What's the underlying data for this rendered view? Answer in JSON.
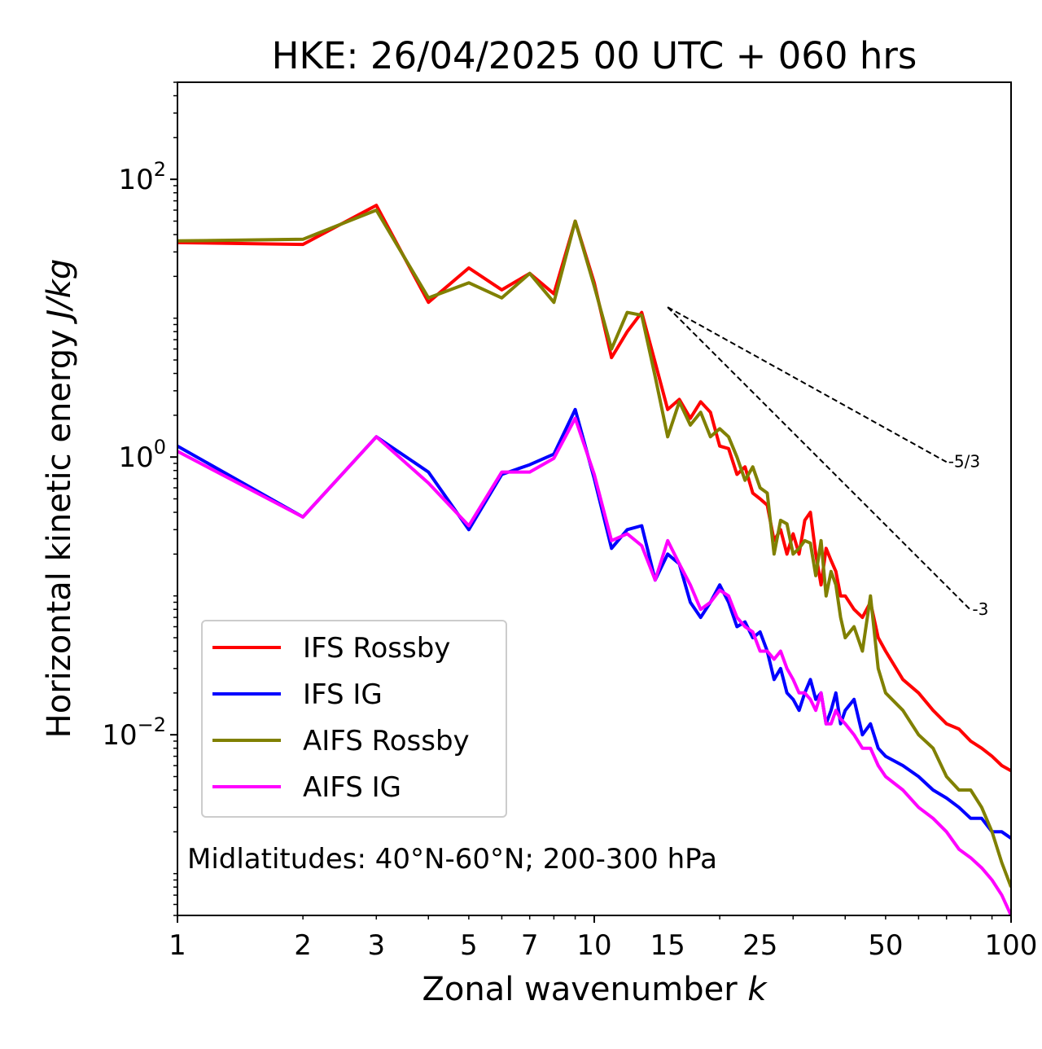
{
  "chart_data": {
    "type": "line",
    "title": "HKE: 26/04/2025 00 UTC + 060 hrs",
    "xlabel": "Zonal wavenumber",
    "xlabel_var": "k",
    "ylabel": "Horizontal kinetic energy",
    "ylabel_unit": "J/kg",
    "xscale": "log",
    "yscale": "log",
    "xlim": [
      1,
      100
    ],
    "ylim": [
      0.0005,
      500
    ],
    "x_ticks": [
      1,
      2,
      3,
      5,
      7,
      10,
      15,
      25,
      50,
      100
    ],
    "x_tick_labels": [
      "1",
      "2",
      "3",
      "5",
      "7",
      "10",
      "15",
      "25",
      "50",
      "100"
    ],
    "y_ticks": [
      0.01,
      1,
      100
    ],
    "y_tick_bases": [
      "10",
      "10",
      "10"
    ],
    "y_tick_exponents": [
      "−2",
      "0",
      "2"
    ],
    "grid": false,
    "legend_position": "lower-left",
    "annotation": "Midlatitudes: 40°N-60°N; 200-300 hPa",
    "reference_lines": [
      {
        "label": "-5/3",
        "slope": -1.6667,
        "x": [
          15,
          70
        ],
        "y0": 12
      },
      {
        "label": "-3",
        "slope": -3,
        "x": [
          15,
          80
        ],
        "y0": 12
      }
    ],
    "series": [
      {
        "name": "IFS Rossby",
        "color": "#ff0000",
        "x": [
          1,
          2,
          3,
          4,
          5,
          6,
          7,
          8,
          9,
          10,
          11,
          12,
          13,
          14,
          15,
          16,
          17,
          18,
          19,
          20,
          21,
          22,
          23,
          24,
          25,
          26,
          27,
          28,
          29,
          30,
          31,
          32,
          33,
          34,
          35,
          36,
          37,
          38,
          39,
          40,
          42,
          44,
          46,
          48,
          50,
          55,
          60,
          65,
          70,
          75,
          80,
          85,
          90,
          95,
          100
        ],
        "y": [
          35,
          34,
          65,
          13,
          23,
          16,
          21,
          15,
          50,
          18,
          5.2,
          8,
          11,
          4.8,
          2.2,
          2.6,
          1.9,
          2.5,
          2.1,
          1.2,
          1.15,
          0.75,
          0.85,
          0.55,
          0.5,
          0.45,
          0.25,
          0.3,
          0.2,
          0.28,
          0.2,
          0.35,
          0.4,
          0.2,
          0.12,
          0.22,
          0.18,
          0.15,
          0.1,
          0.1,
          0.08,
          0.07,
          0.09,
          0.05,
          0.04,
          0.025,
          0.02,
          0.015,
          0.012,
          0.011,
          0.009,
          0.008,
          0.007,
          0.006,
          0.0055
        ]
      },
      {
        "name": "IFS IG",
        "color": "#0000ff",
        "x": [
          1,
          2,
          3,
          4,
          5,
          6,
          7,
          8,
          9,
          10,
          11,
          12,
          13,
          14,
          15,
          16,
          17,
          18,
          19,
          20,
          21,
          22,
          23,
          24,
          25,
          26,
          27,
          28,
          29,
          30,
          31,
          32,
          33,
          34,
          35,
          36,
          37,
          38,
          39,
          40,
          42,
          44,
          46,
          48,
          50,
          55,
          60,
          65,
          70,
          75,
          80,
          85,
          90,
          95,
          100
        ],
        "y": [
          1.2,
          0.37,
          1.4,
          0.78,
          0.3,
          0.75,
          0.88,
          1.05,
          2.2,
          0.7,
          0.22,
          0.3,
          0.32,
          0.13,
          0.2,
          0.17,
          0.09,
          0.07,
          0.09,
          0.12,
          0.09,
          0.06,
          0.065,
          0.05,
          0.055,
          0.04,
          0.025,
          0.03,
          0.02,
          0.018,
          0.015,
          0.02,
          0.025,
          0.018,
          0.02,
          0.012,
          0.015,
          0.02,
          0.012,
          0.015,
          0.018,
          0.01,
          0.012,
          0.008,
          0.007,
          0.006,
          0.005,
          0.004,
          0.0035,
          0.003,
          0.0025,
          0.0025,
          0.002,
          0.002,
          0.0018
        ]
      },
      {
        "name": "AIFS Rossby",
        "color": "#808000",
        "x": [
          1,
          2,
          3,
          4,
          5,
          6,
          7,
          8,
          9,
          10,
          11,
          12,
          13,
          14,
          15,
          16,
          17,
          18,
          19,
          20,
          21,
          22,
          23,
          24,
          25,
          26,
          27,
          28,
          29,
          30,
          31,
          32,
          33,
          34,
          35,
          36,
          37,
          38,
          39,
          40,
          42,
          44,
          46,
          48,
          50,
          55,
          60,
          65,
          70,
          75,
          80,
          85,
          90,
          95,
          100
        ],
        "y": [
          36,
          37,
          60,
          14,
          18,
          14,
          21,
          13,
          50,
          17,
          6,
          11,
          10.5,
          3.8,
          1.4,
          2.5,
          1.7,
          2.1,
          1.4,
          1.6,
          1.4,
          1.0,
          0.68,
          0.85,
          0.6,
          0.55,
          0.2,
          0.35,
          0.33,
          0.2,
          0.22,
          0.25,
          0.24,
          0.14,
          0.25,
          0.1,
          0.15,
          0.12,
          0.07,
          0.05,
          0.06,
          0.04,
          0.1,
          0.03,
          0.02,
          0.015,
          0.01,
          0.008,
          0.005,
          0.004,
          0.004,
          0.003,
          0.002,
          0.0012,
          0.0008
        ]
      },
      {
        "name": "AIFS IG",
        "color": "#ff00ff",
        "x": [
          1,
          2,
          3,
          4,
          5,
          6,
          7,
          8,
          9,
          10,
          11,
          12,
          13,
          14,
          15,
          16,
          17,
          18,
          19,
          20,
          21,
          22,
          23,
          24,
          25,
          26,
          27,
          28,
          29,
          30,
          31,
          32,
          33,
          34,
          35,
          36,
          37,
          38,
          39,
          40,
          42,
          44,
          46,
          48,
          50,
          55,
          60,
          65,
          70,
          75,
          80,
          85,
          90,
          95,
          100
        ],
        "y": [
          1.1,
          0.37,
          1.4,
          0.65,
          0.32,
          0.78,
          0.78,
          0.98,
          1.9,
          0.75,
          0.25,
          0.28,
          0.23,
          0.13,
          0.25,
          0.17,
          0.12,
          0.08,
          0.09,
          0.11,
          0.1,
          0.07,
          0.06,
          0.055,
          0.04,
          0.04,
          0.035,
          0.04,
          0.03,
          0.025,
          0.02,
          0.02,
          0.018,
          0.015,
          0.02,
          0.012,
          0.012,
          0.015,
          0.013,
          0.012,
          0.01,
          0.008,
          0.008,
          0.006,
          0.005,
          0.004,
          0.003,
          0.0025,
          0.002,
          0.0015,
          0.0013,
          0.0011,
          0.0009,
          0.0007,
          0.0005
        ]
      }
    ]
  }
}
